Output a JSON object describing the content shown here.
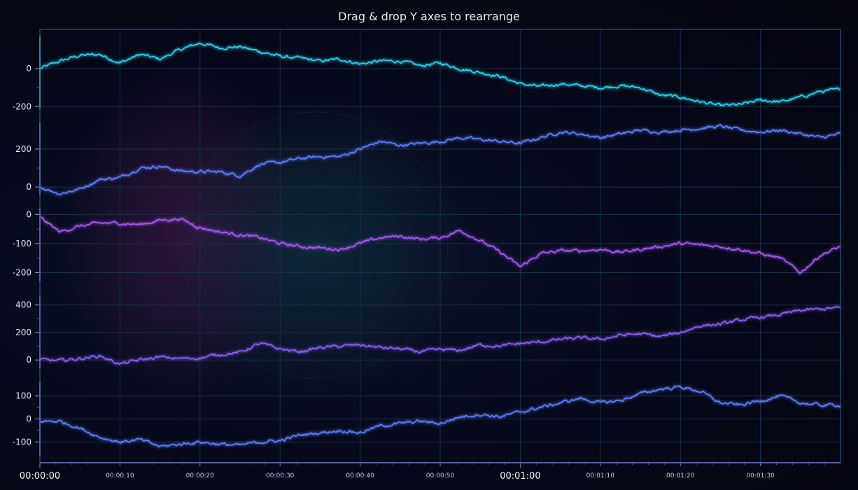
{
  "chart_data": {
    "type": "line",
    "title": "Drag & drop Y axes to rearrange",
    "x_ticks": [
      {
        "label": "00:00:00",
        "major": true,
        "t": 0
      },
      {
        "label": "00:00:10",
        "major": false,
        "t": 10
      },
      {
        "label": "00:00:20",
        "major": false,
        "t": 20
      },
      {
        "label": "00:00:30",
        "major": false,
        "t": 30
      },
      {
        "label": "00:00:40",
        "major": false,
        "t": 40
      },
      {
        "label": "00:00:50",
        "major": false,
        "t": 50
      },
      {
        "label": "00:01:00",
        "major": true,
        "t": 60
      },
      {
        "label": "00:01:10",
        "major": false,
        "t": 70
      },
      {
        "label": "00:01:20",
        "major": false,
        "t": 80
      },
      {
        "label": "00:01:30",
        "major": false,
        "t": 90
      }
    ],
    "xlim": [
      0,
      100
    ],
    "grid": true,
    "series": [
      {
        "color": "#22d3ee",
        "ylim": [
          -210,
          170
        ],
        "yticks": [
          0,
          -200
        ],
        "x": [
          0,
          2.5,
          5,
          7.5,
          10,
          12.5,
          15,
          17.5,
          20,
          22.5,
          25,
          27.5,
          30,
          32.5,
          35,
          37.5,
          40,
          42.5,
          45,
          47.5,
          50,
          52.5,
          55,
          57.5,
          60,
          62.5,
          65,
          67.5,
          70,
          72.5,
          75,
          77.5,
          80,
          82.5,
          85,
          87.5,
          90,
          92.5,
          95,
          97.5,
          100
        ],
        "y": [
          0,
          40,
          70,
          75,
          30,
          75,
          50,
          100,
          135,
          110,
          115,
          90,
          65,
          55,
          40,
          50,
          25,
          40,
          40,
          15,
          30,
          0,
          -20,
          -40,
          -80,
          -95,
          -80,
          -90,
          -100,
          -90,
          -100,
          -140,
          -150,
          -175,
          -195,
          -190,
          -165,
          -175,
          -150,
          -120,
          -110
        ]
      },
      {
        "color": "#5b7bff",
        "ylim": [
          -40,
          340
        ],
        "yticks": [
          200,
          0
        ],
        "x": [
          0,
          2.5,
          5,
          7.5,
          10,
          12.5,
          15,
          17.5,
          20,
          22.5,
          25,
          27.5,
          30,
          32.5,
          35,
          37.5,
          40,
          42.5,
          45,
          47.5,
          50,
          52.5,
          55,
          57.5,
          60,
          62.5,
          65,
          67.5,
          70,
          72.5,
          75,
          77.5,
          80,
          82.5,
          85,
          87.5,
          90,
          92.5,
          95,
          97.5,
          100
        ],
        "y": [
          0,
          -35,
          -10,
          40,
          50,
          100,
          110,
          85,
          80,
          80,
          60,
          120,
          130,
          150,
          160,
          160,
          200,
          240,
          220,
          230,
          240,
          260,
          250,
          240,
          230,
          260,
          290,
          280,
          260,
          280,
          300,
          290,
          300,
          310,
          320,
          300,
          290,
          300,
          280,
          260,
          280
        ]
      },
      {
        "color": "#a855f7",
        "ylim": [
          -230,
          20
        ],
        "yticks": [
          0,
          -100,
          -200
        ],
        "x": [
          0,
          2.5,
          5,
          7.5,
          10,
          12.5,
          15,
          17.5,
          20,
          22.5,
          25,
          27.5,
          30,
          32.5,
          35,
          37.5,
          40,
          42.5,
          45,
          47.5,
          50,
          52.5,
          55,
          57.5,
          60,
          62.5,
          65,
          67.5,
          70,
          72.5,
          75,
          77.5,
          80,
          82.5,
          85,
          87.5,
          90,
          92.5,
          95,
          97.5,
          100
        ],
        "y": [
          -10,
          -60,
          -40,
          -30,
          -30,
          -35,
          -20,
          -15,
          -45,
          -60,
          -70,
          -80,
          -100,
          -110,
          -115,
          -120,
          -100,
          -80,
          -75,
          -85,
          -80,
          -55,
          -90,
          -130,
          -180,
          -135,
          -125,
          -125,
          -120,
          -130,
          -120,
          -110,
          -100,
          -105,
          -110,
          -120,
          -135,
          -150,
          -200,
          -140,
          -110
        ]
      },
      {
        "color": "#8b5cf6",
        "ylim": [
          -60,
          470
        ],
        "yticks": [
          400,
          200,
          0
        ],
        "x": [
          0,
          2.5,
          5,
          7.5,
          10,
          12.5,
          15,
          17.5,
          20,
          22.5,
          25,
          27.5,
          30,
          32.5,
          35,
          37.5,
          40,
          42.5,
          45,
          47.5,
          50,
          52.5,
          55,
          57.5,
          60,
          62.5,
          65,
          67.5,
          70,
          72.5,
          75,
          77.5,
          80,
          82.5,
          85,
          87.5,
          90,
          92.5,
          95,
          97.5,
          100
        ],
        "y": [
          0,
          -5,
          10,
          30,
          -30,
          0,
          20,
          10,
          15,
          40,
          55,
          120,
          80,
          60,
          90,
          100,
          110,
          90,
          80,
          60,
          75,
          70,
          110,
          100,
          120,
          130,
          150,
          160,
          150,
          180,
          190,
          170,
          200,
          250,
          260,
          290,
          310,
          330,
          360,
          370,
          380
        ]
      },
      {
        "color": "#5b7bff",
        "ylim": [
          -160,
          160
        ],
        "yticks": [
          100,
          0,
          -100
        ],
        "x": [
          0,
          2.5,
          5,
          7.5,
          10,
          12.5,
          15,
          17.5,
          20,
          22.5,
          25,
          27.5,
          30,
          32.5,
          35,
          37.5,
          40,
          42.5,
          45,
          47.5,
          50,
          52.5,
          55,
          57.5,
          60,
          62.5,
          65,
          67.5,
          70,
          72.5,
          75,
          77.5,
          80,
          82.5,
          85,
          87.5,
          90,
          92.5,
          95,
          97.5,
          100
        ],
        "y": [
          -10,
          -10,
          -40,
          -80,
          -100,
          -90,
          -120,
          -110,
          -100,
          -110,
          -115,
          -100,
          -95,
          -70,
          -60,
          -50,
          -60,
          -30,
          -20,
          -10,
          -20,
          10,
          20,
          10,
          30,
          50,
          70,
          90,
          70,
          80,
          110,
          130,
          140,
          120,
          70,
          60,
          80,
          100,
          70,
          60,
          60
        ]
      }
    ]
  }
}
